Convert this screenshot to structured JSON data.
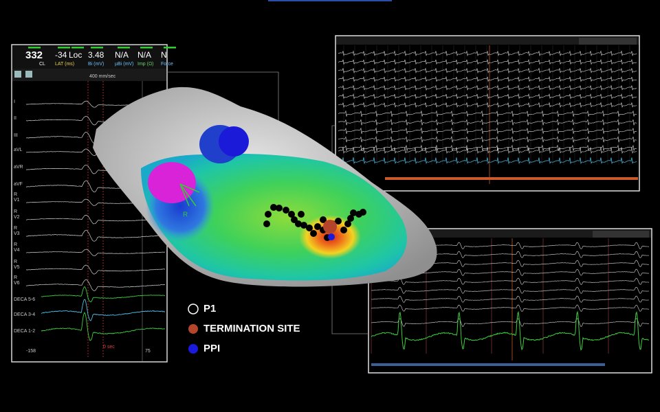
{
  "readouts": [
    {
      "value": "332",
      "label": "CL"
    },
    {
      "value": "-34",
      "label": "LAT (ms)"
    },
    {
      "value": "Loc"
    },
    {
      "value": "3.48",
      "label": "Bi (mV)"
    },
    {
      "value": "N/A",
      "label": "µBi (mV)"
    },
    {
      "value": "N/A",
      "label": "Imp (Ω)"
    },
    {
      "value": "N",
      "label": "Force"
    }
  ],
  "speed": "400 mm/sec",
  "leads": [
    {
      "name": "I"
    },
    {
      "name": "II"
    },
    {
      "name": "III"
    },
    {
      "name": "aVL"
    },
    {
      "name": "aVR"
    },
    {
      "name": "aVF"
    },
    {
      "prefix": "R",
      "name": "V1"
    },
    {
      "prefix": "R",
      "name": "V2"
    },
    {
      "prefix": "R",
      "name": "V3"
    },
    {
      "prefix": "R",
      "name": "V4"
    },
    {
      "prefix": "R",
      "name": "V5"
    },
    {
      "prefix": "R",
      "name": "V6"
    }
  ],
  "deca": [
    "DECA 5-6",
    "DECA 3-4",
    "DECA 1-2"
  ],
  "footer": {
    "left": "-158",
    "center": "0 sec",
    "right": "75"
  },
  "map_label": "R",
  "legend": [
    {
      "label": "P1",
      "color": "#000000"
    },
    {
      "label": "TERMINATION SITE",
      "color": "#b5452a"
    },
    {
      "label": "PPI",
      "color": "#1a1adf"
    }
  ]
}
